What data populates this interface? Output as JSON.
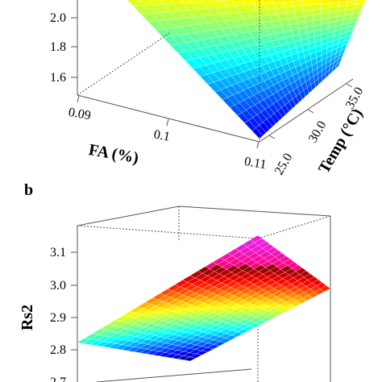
{
  "chart_data": [
    {
      "panel_label": "",
      "type": "surface",
      "xlabel": "FA (%)",
      "ylabel": "Temp (°C)",
      "zlabel": "",
      "x_ticks": [
        "0.09",
        "0.1",
        "0.11"
      ],
      "y_ticks": [
        "25.0",
        "30.0",
        "35.0"
      ],
      "z_ticks": [
        "1.6",
        "1.8",
        "2.0"
      ],
      "colormap": "jet"
    },
    {
      "panel_label": "b",
      "type": "surface",
      "xlabel": "",
      "ylabel": "",
      "zlabel": "Rs2",
      "x_ticks": [],
      "y_ticks": [],
      "z_ticks": [
        "2.7",
        "2.8",
        "2.9",
        "3.0",
        "3.1"
      ],
      "colormap": "jet"
    }
  ]
}
